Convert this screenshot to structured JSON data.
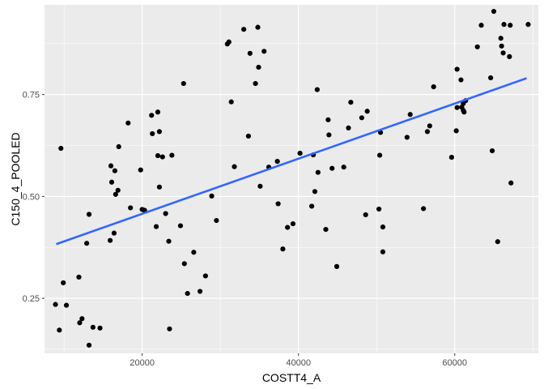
{
  "chart_data": {
    "type": "scatter",
    "xlabel": "COSTT4_A",
    "ylabel": "C150_4_POOLED",
    "xlim": [
      7500,
      70700
    ],
    "ylim": [
      0.115,
      0.97
    ],
    "x_ticks": [
      {
        "value": 20000,
        "label": "20000"
      },
      {
        "value": 40000,
        "label": "40000"
      },
      {
        "value": 60000,
        "label": "60000"
      }
    ],
    "y_ticks": [
      {
        "value": 0.25,
        "label": "0.25"
      },
      {
        "value": 0.5,
        "label": "0.50"
      },
      {
        "value": 0.75,
        "label": "0.75"
      }
    ],
    "grid": true,
    "panel_background": "#ebebeb",
    "point_color": "#000000",
    "fit_line": {
      "method": "linear",
      "color": "#3366ff",
      "x": [
        9000,
        69200
      ],
      "y": [
        0.383,
        0.79
      ]
    },
    "points": [
      {
        "x": 8900,
        "y": 0.235
      },
      {
        "x": 9400,
        "y": 0.172
      },
      {
        "x": 9600,
        "y": 0.618
      },
      {
        "x": 9900,
        "y": 0.288
      },
      {
        "x": 10300,
        "y": 0.233
      },
      {
        "x": 11900,
        "y": 0.302
      },
      {
        "x": 12000,
        "y": 0.19
      },
      {
        "x": 12300,
        "y": 0.2
      },
      {
        "x": 12900,
        "y": 0.385
      },
      {
        "x": 13200,
        "y": 0.456
      },
      {
        "x": 13200,
        "y": 0.135
      },
      {
        "x": 13700,
        "y": 0.179
      },
      {
        "x": 14600,
        "y": 0.177
      },
      {
        "x": 15900,
        "y": 0.392
      },
      {
        "x": 16000,
        "y": 0.575
      },
      {
        "x": 16100,
        "y": 0.535
      },
      {
        "x": 16400,
        "y": 0.41
      },
      {
        "x": 16500,
        "y": 0.563
      },
      {
        "x": 16600,
        "y": 0.505
      },
      {
        "x": 16900,
        "y": 0.515
      },
      {
        "x": 17000,
        "y": 0.622
      },
      {
        "x": 18200,
        "y": 0.68
      },
      {
        "x": 18500,
        "y": 0.472
      },
      {
        "x": 19800,
        "y": 0.565
      },
      {
        "x": 20000,
        "y": 0.468
      },
      {
        "x": 20300,
        "y": 0.466
      },
      {
        "x": 21200,
        "y": 0.699
      },
      {
        "x": 21300,
        "y": 0.654
      },
      {
        "x": 21800,
        "y": 0.426
      },
      {
        "x": 22000,
        "y": 0.707
      },
      {
        "x": 22000,
        "y": 0.6
      },
      {
        "x": 22200,
        "y": 0.659
      },
      {
        "x": 22200,
        "y": 0.523
      },
      {
        "x": 22600,
        "y": 0.597
      },
      {
        "x": 23000,
        "y": 0.458
      },
      {
        "x": 23400,
        "y": 0.39
      },
      {
        "x": 23500,
        "y": 0.175
      },
      {
        "x": 23800,
        "y": 0.601
      },
      {
        "x": 24900,
        "y": 0.428
      },
      {
        "x": 25300,
        "y": 0.777
      },
      {
        "x": 25400,
        "y": 0.335
      },
      {
        "x": 25800,
        "y": 0.262
      },
      {
        "x": 26600,
        "y": 0.363
      },
      {
        "x": 27400,
        "y": 0.267
      },
      {
        "x": 28100,
        "y": 0.305
      },
      {
        "x": 28900,
        "y": 0.501
      },
      {
        "x": 29500,
        "y": 0.441
      },
      {
        "x": 30900,
        "y": 0.874
      },
      {
        "x": 31100,
        "y": 0.879
      },
      {
        "x": 31400,
        "y": 0.732
      },
      {
        "x": 31800,
        "y": 0.573
      },
      {
        "x": 33000,
        "y": 0.91
      },
      {
        "x": 33600,
        "y": 0.648
      },
      {
        "x": 33800,
        "y": 0.851
      },
      {
        "x": 34500,
        "y": 0.777
      },
      {
        "x": 34800,
        "y": 0.915
      },
      {
        "x": 34900,
        "y": 0.817
      },
      {
        "x": 35100,
        "y": 0.525
      },
      {
        "x": 35600,
        "y": 0.856
      },
      {
        "x": 36200,
        "y": 0.572
      },
      {
        "x": 37300,
        "y": 0.586
      },
      {
        "x": 37400,
        "y": 0.482
      },
      {
        "x": 38000,
        "y": 0.371
      },
      {
        "x": 38600,
        "y": 0.424
      },
      {
        "x": 39300,
        "y": 0.433
      },
      {
        "x": 40200,
        "y": 0.606
      },
      {
        "x": 41700,
        "y": 0.476
      },
      {
        "x": 41900,
        "y": 0.602
      },
      {
        "x": 42100,
        "y": 0.512
      },
      {
        "x": 42400,
        "y": 0.762
      },
      {
        "x": 42500,
        "y": 0.559
      },
      {
        "x": 43500,
        "y": 0.419
      },
      {
        "x": 43800,
        "y": 0.688
      },
      {
        "x": 43900,
        "y": 0.651
      },
      {
        "x": 44300,
        "y": 0.569
      },
      {
        "x": 44900,
        "y": 0.328
      },
      {
        "x": 45800,
        "y": 0.572
      },
      {
        "x": 46400,
        "y": 0.668
      },
      {
        "x": 46700,
        "y": 0.731
      },
      {
        "x": 48100,
        "y": 0.693
      },
      {
        "x": 48600,
        "y": 0.455
      },
      {
        "x": 48800,
        "y": 0.709
      },
      {
        "x": 50300,
        "y": 0.469
      },
      {
        "x": 50400,
        "y": 0.601
      },
      {
        "x": 50500,
        "y": 0.657
      },
      {
        "x": 50800,
        "y": 0.425
      },
      {
        "x": 50800,
        "y": 0.364
      },
      {
        "x": 53900,
        "y": 0.645
      },
      {
        "x": 54300,
        "y": 0.701
      },
      {
        "x": 56000,
        "y": 0.47
      },
      {
        "x": 56500,
        "y": 0.659
      },
      {
        "x": 56800,
        "y": 0.673
      },
      {
        "x": 57300,
        "y": 0.769
      },
      {
        "x": 59600,
        "y": 0.596
      },
      {
        "x": 60200,
        "y": 0.661
      },
      {
        "x": 60300,
        "y": 0.812
      },
      {
        "x": 60300,
        "y": 0.718
      },
      {
        "x": 60800,
        "y": 0.786
      },
      {
        "x": 60900,
        "y": 0.719
      },
      {
        "x": 61100,
        "y": 0.711
      },
      {
        "x": 61100,
        "y": 0.728
      },
      {
        "x": 61200,
        "y": 0.707
      },
      {
        "x": 61400,
        "y": 0.735
      },
      {
        "x": 62900,
        "y": 0.867
      },
      {
        "x": 63400,
        "y": 0.92
      },
      {
        "x": 64600,
        "y": 0.791
      },
      {
        "x": 64800,
        "y": 0.612
      },
      {
        "x": 65000,
        "y": 0.954
      },
      {
        "x": 65500,
        "y": 0.389
      },
      {
        "x": 65900,
        "y": 0.888
      },
      {
        "x": 66000,
        "y": 0.869
      },
      {
        "x": 66200,
        "y": 0.852
      },
      {
        "x": 66300,
        "y": 0.922
      },
      {
        "x": 67000,
        "y": 0.843
      },
      {
        "x": 67100,
        "y": 0.92
      },
      {
        "x": 67200,
        "y": 0.533
      },
      {
        "x": 69400,
        "y": 0.922
      }
    ]
  }
}
